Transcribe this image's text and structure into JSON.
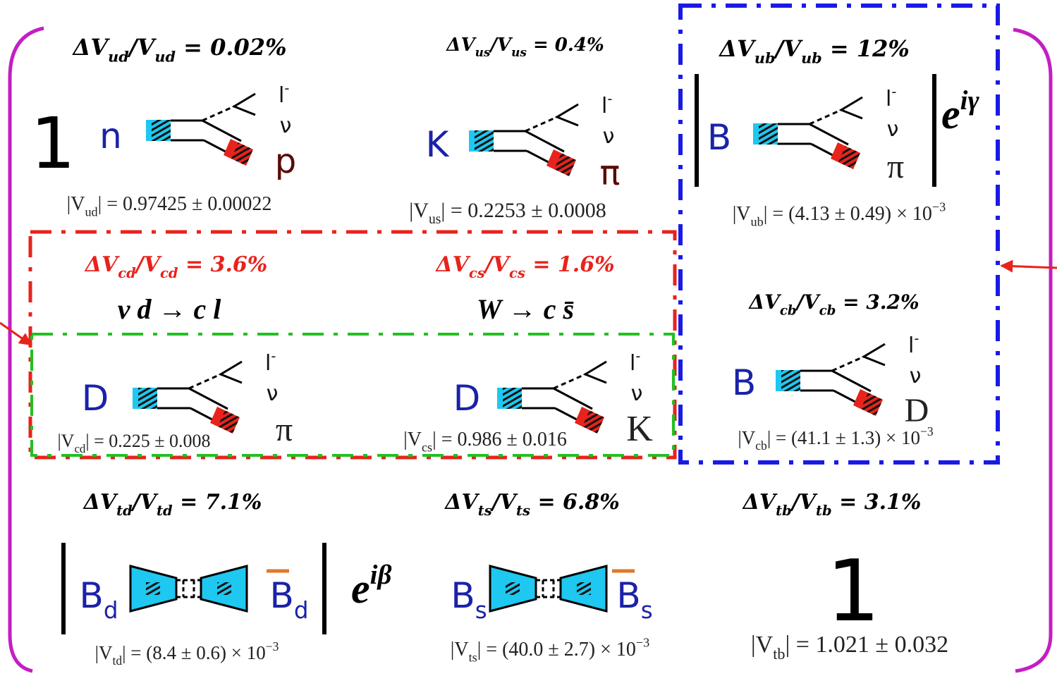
{
  "cells": [
    {
      "precision": [
        "ΔV",
        {
          "sub": "ud"
        },
        "/V",
        {
          "sub": "ud"
        },
        " = 0.02%"
      ],
      "prefix": "1",
      "initial": [
        "n"
      ],
      "lepton": [
        "l",
        {
          "sup": "-"
        }
      ],
      "neutrino": "ν",
      "final": [
        "p"
      ],
      "value": [
        "|V",
        {
          "sub": "ud"
        },
        "| = 0.97425 ± 0.00022"
      ]
    },
    {
      "precision": [
        "ΔV",
        {
          "sub": "us"
        },
        "/V",
        {
          "sub": "us"
        },
        " = 0.4%"
      ],
      "initial": [
        "K"
      ],
      "lepton": [
        "l",
        {
          "sup": "-"
        }
      ],
      "neutrino": "ν",
      "final": [
        "π"
      ],
      "value": [
        "|V",
        {
          "sub": "us"
        },
        "| = 0.2253 ± 0.0008"
      ]
    },
    {
      "precision": [
        "ΔV",
        {
          "sub": "ub"
        },
        "/V",
        {
          "sub": "ub"
        },
        " = 12%"
      ],
      "initial": [
        "B"
      ],
      "lepton": [
        "l",
        {
          "sup": "-"
        }
      ],
      "neutrino": "ν",
      "final": [
        "π"
      ],
      "phase": [
        "e",
        {
          "sup": "iγ"
        }
      ],
      "value": [
        "|V",
        {
          "sub": "ub"
        },
        "| = (4.13 ± 0.49) × 10",
        {
          "sup": "−3"
        }
      ]
    },
    {
      "precision": [
        "ΔV",
        {
          "sub": "cd"
        },
        "/V",
        {
          "sub": "cd"
        },
        " = 3.6%"
      ],
      "process": "ν  d → c  l",
      "initial": [
        "D"
      ],
      "lepton": [
        "l",
        {
          "sup": "-"
        }
      ],
      "neutrino": "ν",
      "final": [
        "π"
      ],
      "value": [
        "|V",
        {
          "sub": "cd"
        },
        "| = 0.225 ± 0.008"
      ]
    },
    {
      "precision": [
        "ΔV",
        {
          "sub": "cs"
        },
        "/V",
        {
          "sub": "cs"
        },
        " = 1.6%"
      ],
      "process": "W → c  s̄",
      "initial": [
        "D"
      ],
      "lepton": [
        "l",
        {
          "sup": "-"
        }
      ],
      "neutrino": "ν",
      "final": [
        "K"
      ],
      "value": [
        "|V",
        {
          "sub": "cs"
        },
        "| = 0.986 ± 0.016"
      ]
    },
    {
      "precision": [
        "ΔV",
        {
          "sub": "cb"
        },
        "/V",
        {
          "sub": "cb"
        },
        " = 3.2%"
      ],
      "initial": [
        "B"
      ],
      "lepton": [
        "l",
        {
          "sup": "-"
        }
      ],
      "neutrino": "ν",
      "final": [
        "D"
      ],
      "value": [
        "|V",
        {
          "sub": "cb"
        },
        "| = (41.1 ± 1.3) × 10",
        {
          "sup": "−3"
        }
      ]
    },
    {
      "precision": [
        "ΔV",
        {
          "sub": "td"
        },
        "/V",
        {
          "sub": "td"
        },
        " = 7.1%"
      ],
      "initial": [
        "B",
        {
          "sub": "d"
        }
      ],
      "final": [
        "B",
        {
          "sub": "d"
        }
      ],
      "phase": [
        "e",
        {
          "sup": "iβ"
        }
      ],
      "value": [
        "|V",
        {
          "sub": "td"
        },
        "| = (8.4 ± 0.6) × 10",
        {
          "sup": "−3"
        }
      ]
    },
    {
      "precision": [
        "ΔV",
        {
          "sub": "ts"
        },
        "/V",
        {
          "sub": "ts"
        },
        " = 6.8%"
      ],
      "initial": [
        "B",
        {
          "sub": "s"
        }
      ],
      "final": [
        "B",
        {
          "sub": "s"
        }
      ],
      "value": [
        "|V",
        {
          "sub": "ts"
        },
        "| = (40.0 ± 2.7) × 10",
        {
          "sup": "−3"
        }
      ]
    },
    {
      "precision": [
        "ΔV",
        {
          "sub": "tb"
        },
        "/V",
        {
          "sub": "tb"
        },
        " = 3.1%"
      ],
      "prefix": "1",
      "value": [
        "|V",
        {
          "sub": "tb"
        },
        "| = 1.021 ± 0.032"
      ]
    }
  ]
}
